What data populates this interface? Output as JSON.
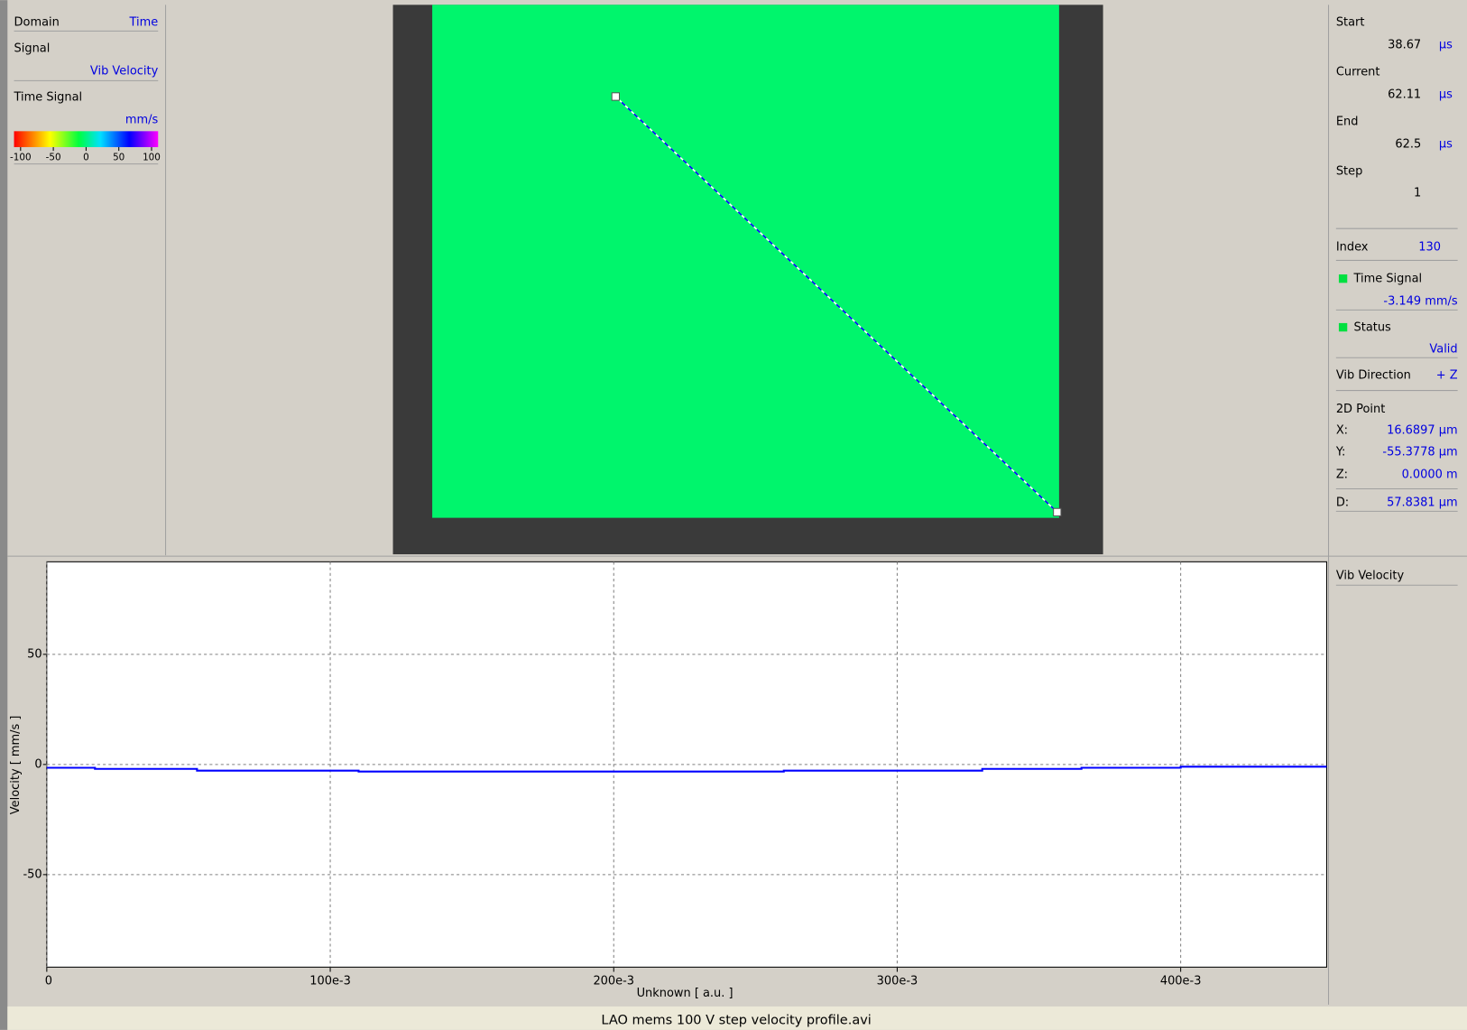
{
  "left_panel": {
    "domain_label": "Domain",
    "domain": "Time",
    "signal_label": "Signal",
    "signal": "Vib Velocity",
    "display": "Time Signal",
    "unit": "mm/s",
    "colorbar_ticks": [
      -100,
      -50,
      0,
      50,
      100
    ]
  },
  "right_panel": {
    "start": {
      "label": "Start",
      "value": "38.67",
      "unit": "µs"
    },
    "current": {
      "label": "Current",
      "value": "62.11",
      "unit": "µs"
    },
    "end": {
      "label": "End",
      "value": "62.5",
      "unit": "µs"
    },
    "step": {
      "label": "Step",
      "value": "1"
    },
    "index": {
      "label": "Index",
      "value": "130"
    },
    "time_signal": {
      "label": "Time Signal",
      "value": "-3.149 mm/s"
    },
    "status": {
      "label": "Status",
      "value": "Valid"
    },
    "vib_direction": {
      "label": "Vib Direction",
      "value": "+ Z"
    },
    "point": {
      "title": "2D Point",
      "rows": [
        {
          "label": "X:",
          "value": "16.6897 µm"
        },
        {
          "label": "Y:",
          "value": "-55.3778 µm"
        },
        {
          "label": "Z:",
          "value": "0.0000 m"
        },
        {
          "label": "D:",
          "value": "57.8381 µm"
        }
      ]
    }
  },
  "chart_data": {
    "type": "line",
    "xlabel": "Unknown [ a.u. ]",
    "ylabel": "Velocity [ mm/s ]",
    "x": [
      0,
      0.017,
      0.017,
      0.053,
      0.053,
      0.11,
      0.11,
      0.26,
      0.26,
      0.33,
      0.33,
      0.365,
      0.365,
      0.4,
      0.4,
      0.4515
    ],
    "series": [
      {
        "name": "Vib Velocity",
        "color": "#0000ff",
        "values": [
          -1.5,
          -1.5,
          -2,
          -2,
          -2.8,
          -2.8,
          -3.2,
          -3.2,
          -2.8,
          -2.8,
          -2,
          -2,
          -1.5,
          -1.5,
          -1,
          -1
        ]
      }
    ],
    "xlim": [
      0,
      0.4515
    ],
    "ylim": [
      -92,
      92
    ],
    "xticks": [
      0,
      {
        "value": 0.1,
        "label": "100e-3"
      },
      {
        "value": 0.2,
        "label": "200e-3"
      },
      {
        "value": 0.3,
        "label": "300e-3"
      },
      {
        "value": 0.4,
        "label": "400e-3"
      }
    ],
    "yticks": [
      -50,
      0,
      50
    ],
    "grid": true
  },
  "footer": {
    "title": "LAO mems 100 V step velocity profile.avi"
  }
}
